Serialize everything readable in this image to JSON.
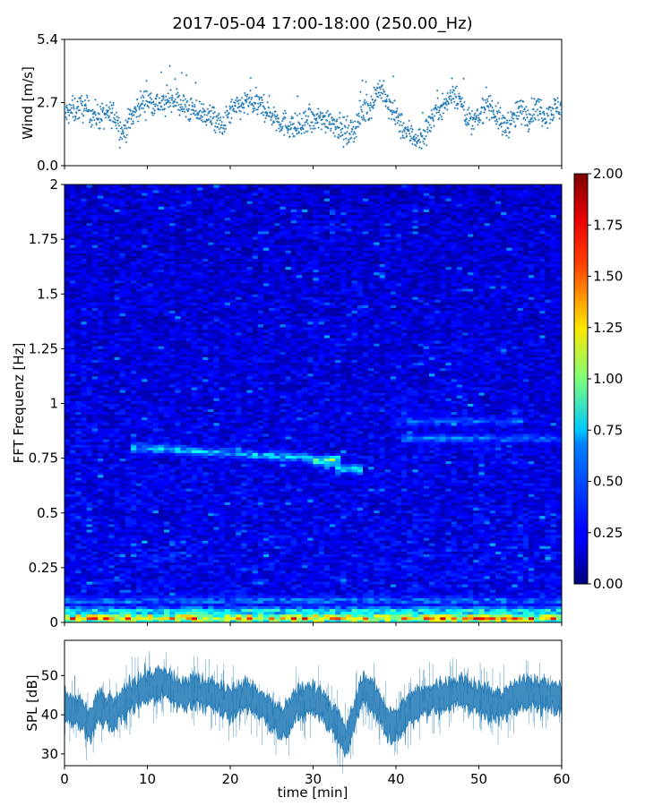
{
  "title": "2017-05-04 17:00-18:00 (250.00_Hz)",
  "chart_data": [
    {
      "type": "scatter",
      "panel": "wind",
      "title": "",
      "xlabel": "",
      "ylabel": "Wind [m/s]",
      "xlim": [
        0,
        60
      ],
      "ylim": [
        0,
        5.4
      ],
      "yticks": [
        "0.0",
        "2.7",
        "5.4"
      ],
      "color": "#1f77b4",
      "baseline": [
        [
          0,
          2.2
        ],
        [
          2,
          2.5
        ],
        [
          4,
          2.1
        ],
        [
          6,
          2.2
        ],
        [
          7,
          1.4
        ],
        [
          8,
          2.0
        ],
        [
          9,
          2.6
        ],
        [
          10,
          2.8
        ],
        [
          12,
          2.6
        ],
        [
          13,
          2.9
        ],
        [
          15,
          2.4
        ],
        [
          17,
          2.2
        ],
        [
          18,
          2.0
        ],
        [
          19,
          1.6
        ],
        [
          20,
          2.3
        ],
        [
          22,
          2.7
        ],
        [
          24,
          2.5
        ],
        [
          26,
          1.9
        ],
        [
          28,
          1.6
        ],
        [
          30,
          1.9
        ],
        [
          32,
          2.0
        ],
        [
          34,
          1.4
        ],
        [
          35,
          1.6
        ],
        [
          36,
          2.3
        ],
        [
          37,
          2.6
        ],
        [
          38,
          3.4
        ],
        [
          39,
          2.6
        ],
        [
          40,
          2.1
        ],
        [
          41,
          1.5
        ],
        [
          42,
          1.3
        ],
        [
          43,
          1.1
        ],
        [
          44,
          1.8
        ],
        [
          45,
          2.5
        ],
        [
          46,
          2.6
        ],
        [
          47,
          3.2
        ],
        [
          48,
          2.6
        ],
        [
          49,
          1.8
        ],
        [
          50,
          2.0
        ],
        [
          51,
          2.8
        ],
        [
          52,
          2.2
        ],
        [
          53,
          1.7
        ],
        [
          54,
          1.9
        ],
        [
          55,
          2.4
        ],
        [
          56,
          2.1
        ],
        [
          57,
          2.5
        ],
        [
          58,
          2.2
        ],
        [
          59,
          2.4
        ],
        [
          60,
          2.5
        ]
      ],
      "spread": 0.55,
      "point_count": 1400
    },
    {
      "type": "heatmap",
      "panel": "spectrogram",
      "title": "",
      "xlabel": "",
      "ylabel": "FFT Frequenz [Hz]",
      "xlim": [
        0,
        60
      ],
      "ylim": [
        0,
        2
      ],
      "yticks": [
        "0",
        "0.25",
        "0.5",
        "0.75",
        "1",
        "1.25",
        "1.5",
        "1.75",
        "2"
      ],
      "colormap": "jet",
      "color_range": [
        0,
        2
      ],
      "colorbar_ticks": [
        "0.00",
        "0.25",
        "0.50",
        "0.75",
        "1.00",
        "1.25",
        "1.50",
        "1.75",
        "2.00"
      ],
      "background_level": 0.22,
      "bands": [
        {
          "f": 0.8,
          "t0": 8,
          "t1": 30,
          "level": 0.72,
          "f_end": 0.75
        },
        {
          "f": 0.74,
          "t0": 30,
          "t1": 33,
          "level": 1.1
        },
        {
          "f": 0.7,
          "t0": 33,
          "t1": 36,
          "level": 0.8
        },
        {
          "f": 0.84,
          "t0": 41,
          "t1": 60,
          "level": 0.55
        },
        {
          "f": 0.92,
          "t0": 40,
          "t1": 55,
          "level": 0.5
        },
        {
          "f": 0.02,
          "t0": 0,
          "t1": 60,
          "level": 1.6
        },
        {
          "f": 0.05,
          "t0": 0,
          "t1": 60,
          "level": 0.9
        },
        {
          "f": 0.1,
          "t0": 0,
          "t1": 60,
          "level": 0.55
        }
      ]
    },
    {
      "type": "area",
      "panel": "spl",
      "title": "",
      "xlabel": "time [min]",
      "ylabel": "SPL [dB]",
      "xlim": [
        0,
        60
      ],
      "ylim": [
        27,
        59
      ],
      "xticks": [
        "0",
        "10",
        "20",
        "30",
        "40",
        "50",
        "60"
      ],
      "yticks": [
        "30",
        "40",
        "50"
      ],
      "color": "#1f77b4",
      "mean": [
        [
          0,
          42
        ],
        [
          2,
          40
        ],
        [
          3,
          37
        ],
        [
          4,
          42
        ],
        [
          6,
          40
        ],
        [
          8,
          45
        ],
        [
          10,
          47
        ],
        [
          12,
          48
        ],
        [
          14,
          45
        ],
        [
          16,
          46
        ],
        [
          18,
          45
        ],
        [
          20,
          43
        ],
        [
          22,
          45
        ],
        [
          24,
          42
        ],
        [
          25,
          40
        ],
        [
          26,
          38
        ],
        [
          27,
          39
        ],
        [
          28,
          43
        ],
        [
          30,
          44
        ],
        [
          31,
          43
        ],
        [
          32,
          40
        ],
        [
          33,
          37
        ],
        [
          34,
          33
        ],
        [
          35,
          40
        ],
        [
          36,
          47
        ],
        [
          37,
          45
        ],
        [
          38,
          42
        ],
        [
          39,
          38
        ],
        [
          40,
          37
        ],
        [
          41,
          40
        ],
        [
          42,
          42
        ],
        [
          44,
          44
        ],
        [
          46,
          45
        ],
        [
          48,
          46
        ],
        [
          50,
          44
        ],
        [
          52,
          42
        ],
        [
          54,
          44
        ],
        [
          56,
          46
        ],
        [
          58,
          45
        ],
        [
          60,
          44
        ]
      ],
      "half_width": 3.5
    }
  ]
}
